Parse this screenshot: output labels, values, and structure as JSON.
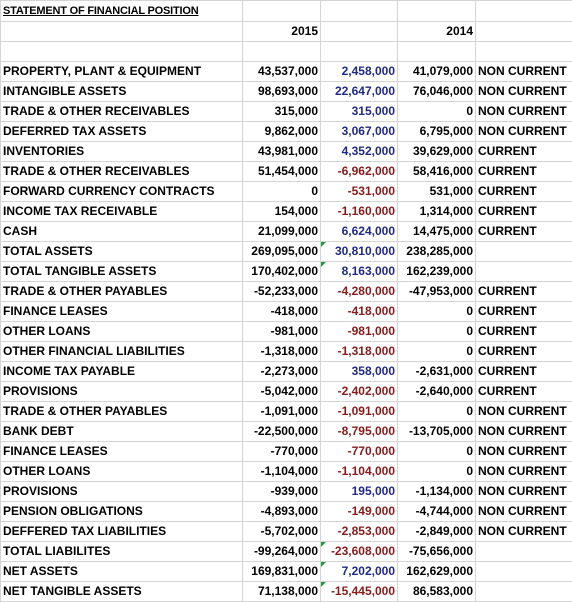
{
  "title": "STATEMENT OF FINANCIAL POSITION",
  "years": [
    "2015",
    "2014"
  ],
  "colors": {
    "positive_change": "#1f2a8c",
    "negative_change": "#8b1a1a",
    "comment_marker": "#1e9a3a"
  },
  "rows": [
    {
      "label": "PROPERTY, PLANT & EQUIPMENT",
      "v2015": "43,537,000",
      "change": "2,458,000",
      "change_sign": "pos",
      "v2014": "41,079,000",
      "class": "NON CURRENT",
      "marker": false
    },
    {
      "label": "INTANGIBLE ASSETS",
      "v2015": "98,693,000",
      "change": "22,647,000",
      "change_sign": "pos",
      "v2014": "76,046,000",
      "class": "NON CURRENT",
      "marker": false
    },
    {
      "label": "TRADE & OTHER RECEIVABLES",
      "v2015": "315,000",
      "change": "315,000",
      "change_sign": "pos",
      "v2014": "0",
      "class": "NON CURRENT",
      "marker": false
    },
    {
      "label": "DEFERRED TAX ASSETS",
      "v2015": "9,862,000",
      "change": "3,067,000",
      "change_sign": "pos",
      "v2014": "6,795,000",
      "class": "NON CURRENT",
      "marker": false
    },
    {
      "label": "INVENTORIES",
      "v2015": "43,981,000",
      "change": "4,352,000",
      "change_sign": "pos",
      "v2014": "39,629,000",
      "class": "CURRENT",
      "marker": false
    },
    {
      "label": "TRADE & OTHER RECEIVABLES",
      "v2015": "51,454,000",
      "change": "-6,962,000",
      "change_sign": "neg",
      "v2014": "58,416,000",
      "class": "CURRENT",
      "marker": false
    },
    {
      "label": "FORWARD CURRENCY CONTRACTS",
      "v2015": "0",
      "change": "-531,000",
      "change_sign": "neg",
      "v2014": "531,000",
      "class": "CURRENT",
      "marker": false
    },
    {
      "label": "INCOME TAX RECEIVABLE",
      "v2015": "154,000",
      "change": "-1,160,000",
      "change_sign": "neg",
      "v2014": "1,314,000",
      "class": "CURRENT",
      "marker": false
    },
    {
      "label": "CASH",
      "v2015": "21,099,000",
      "change": "6,624,000",
      "change_sign": "pos",
      "v2014": "14,475,000",
      "class": "CURRENT",
      "marker": false
    },
    {
      "label": "TOTAL ASSETS",
      "v2015": "269,095,000",
      "change": "30,810,000",
      "change_sign": "pos",
      "v2014": "238,285,000",
      "class": "",
      "marker": true
    },
    {
      "label": "TOTAL TANGIBLE ASSETS",
      "v2015": "170,402,000",
      "change": "8,163,000",
      "change_sign": "pos",
      "v2014": "162,239,000",
      "class": "",
      "marker": true
    },
    {
      "label": "TRADE & OTHER PAYABLES",
      "v2015": "-52,233,000",
      "change": "-4,280,000",
      "change_sign": "neg",
      "v2014": "-47,953,000",
      "class": "CURRENT",
      "marker": false
    },
    {
      "label": "FINANCE LEASES",
      "v2015": "-418,000",
      "change": "-418,000",
      "change_sign": "neg",
      "v2014": "0",
      "class": "CURRENT",
      "marker": false
    },
    {
      "label": "OTHER LOANS",
      "v2015": "-981,000",
      "change": "-981,000",
      "change_sign": "neg",
      "v2014": "0",
      "class": "CURRENT",
      "marker": false
    },
    {
      "label": "OTHER FINANCIAL LIABILITIES",
      "v2015": "-1,318,000",
      "change": "-1,318,000",
      "change_sign": "neg",
      "v2014": "0",
      "class": "CURRENT",
      "marker": false
    },
    {
      "label": "INCOME TAX PAYABLE",
      "v2015": "-2,273,000",
      "change": "358,000",
      "change_sign": "pos",
      "v2014": "-2,631,000",
      "class": "CURRENT",
      "marker": false
    },
    {
      "label": "PROVISIONS",
      "v2015": "-5,042,000",
      "change": "-2,402,000",
      "change_sign": "neg",
      "v2014": "-2,640,000",
      "class": "CURRENT",
      "marker": false
    },
    {
      "label": "TRADE & OTHER PAYABLES",
      "v2015": "-1,091,000",
      "change": "-1,091,000",
      "change_sign": "neg",
      "v2014": "0",
      "class": "NON CURRENT",
      "marker": false
    },
    {
      "label": "BANK DEBT",
      "v2015": "-22,500,000",
      "change": "-8,795,000",
      "change_sign": "neg",
      "v2014": "-13,705,000",
      "class": "NON CURRENT",
      "marker": false
    },
    {
      "label": "FINANCE LEASES",
      "v2015": "-770,000",
      "change": "-770,000",
      "change_sign": "neg",
      "v2014": "0",
      "class": "NON CURRENT",
      "marker": false
    },
    {
      "label": "OTHER LOANS",
      "v2015": "-1,104,000",
      "change": "-1,104,000",
      "change_sign": "neg",
      "v2014": "0",
      "class": "NON CURRENT",
      "marker": false
    },
    {
      "label": "PROVISIONS",
      "v2015": "-939,000",
      "change": "195,000",
      "change_sign": "pos",
      "v2014": "-1,134,000",
      "class": "NON CURRENT",
      "marker": false
    },
    {
      "label": "PENSION OBLIGATIONS",
      "v2015": "-4,893,000",
      "change": "-149,000",
      "change_sign": "neg",
      "v2014": "-4,744,000",
      "class": "NON CURRENT",
      "marker": false
    },
    {
      "label": "DEFFERED TAX LIABILITIES",
      "v2015": "-5,702,000",
      "change": "-2,853,000",
      "change_sign": "neg",
      "v2014": "-2,849,000",
      "class": "NON CURRENT",
      "marker": false
    },
    {
      "label": "TOTAL LIABILITES",
      "v2015": "-99,264,000",
      "change": "-23,608,000",
      "change_sign": "neg",
      "v2014": "-75,656,000",
      "class": "",
      "marker": true
    },
    {
      "label": "NET ASSETS",
      "v2015": "169,831,000",
      "change": "7,202,000",
      "change_sign": "pos",
      "v2014": "162,629,000",
      "class": "",
      "marker": true
    },
    {
      "label": "NET TANGIBLE ASSETS",
      "v2015": "71,138,000",
      "change": "-15,445,000",
      "change_sign": "neg",
      "v2014": "86,583,000",
      "class": "",
      "marker": true
    }
  ]
}
